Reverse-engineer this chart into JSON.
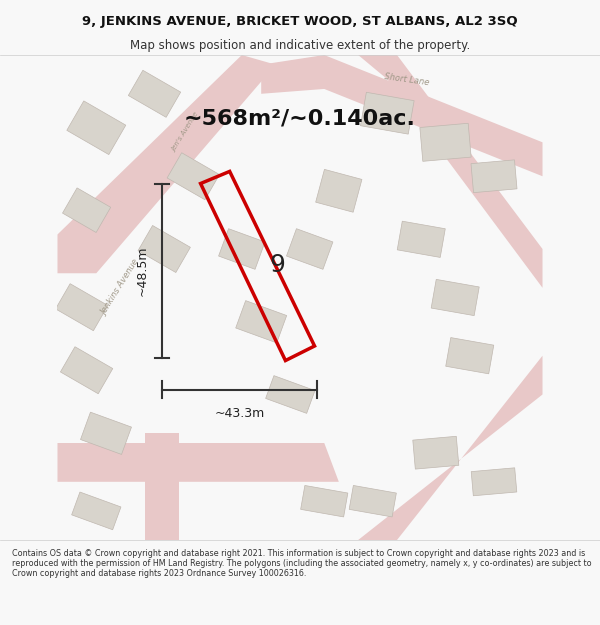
{
  "title_line1": "9, JENKINS AVENUE, BRICKET WOOD, ST ALBANS, AL2 3SQ",
  "title_line2": "Map shows position and indicative extent of the property.",
  "area_text": "~568m²/~0.140ac.",
  "label_number": "9",
  "dim_vertical": "~48.5m",
  "dim_horizontal": "~43.3m",
  "footer_text": "Contains OS data © Crown copyright and database right 2021. This information is subject to Crown copyright and database rights 2023 and is reproduced with the permission of HM Land Registry. The polygons (including the associated geometry, namely x, y co-ordinates) are subject to Crown copyright and database rights 2023 Ordnance Survey 100026316.",
  "bg_color": "#f5f3f0",
  "map_bg": "#f0eeeb",
  "plot_outline_color": "#cc0000",
  "road_color_light": "#f5c0c0",
  "road_color_dark": "#d4a0a0",
  "building_color": "#d8d4cc",
  "building_edge": "#b0a898",
  "road_label_color": "#a09888",
  "short_lane_label": "Short Lane",
  "jenkins_avenue_label": "Jenkins Avenue",
  "fig_width": 6.0,
  "fig_height": 6.25
}
